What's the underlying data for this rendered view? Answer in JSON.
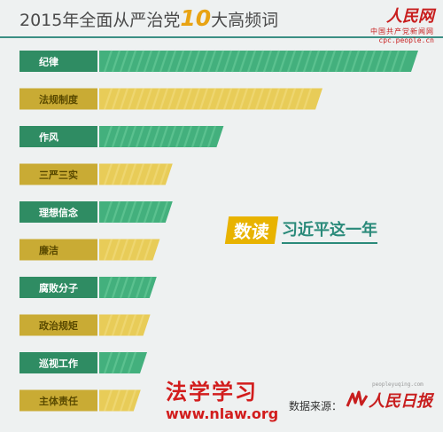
{
  "header": {
    "title_prefix": "2015年全面从严治党",
    "title_number": "10",
    "title_suffix": "大高频词"
  },
  "logo": {
    "brand": "人民网",
    "sub": "中国共产党新闻网",
    "url": "cpc.people.cn"
  },
  "badge": {
    "label": "数读",
    "text": "习近平这一年"
  },
  "footer": {
    "brand": "法学学习",
    "url": "www.nlaw.org",
    "source_label": "数据来源：",
    "source_name": "人民日报",
    "source_site": "peopleyuqing.com"
  },
  "colors": {
    "green": "#43b07d",
    "yellow": "#e8cc58",
    "title_rule": "#3b8f84"
  },
  "chart_data": {
    "type": "bar",
    "orientation": "horizontal",
    "categories": [
      "纪律",
      "法规制度",
      "作风",
      "三严三实",
      "理想信念",
      "廉洁",
      "腐败分子",
      "政治规矩",
      "巡视工作",
      "主体责任"
    ],
    "values": [
      100,
      70,
      39,
      23,
      23,
      19,
      18,
      16,
      15,
      13
    ],
    "colors": [
      "green",
      "yellow",
      "green",
      "yellow",
      "green",
      "yellow",
      "green",
      "yellow",
      "green",
      "yellow"
    ],
    "title": "",
    "xlabel": "",
    "ylabel": "",
    "xlim": [
      0,
      100
    ],
    "grid": false
  }
}
